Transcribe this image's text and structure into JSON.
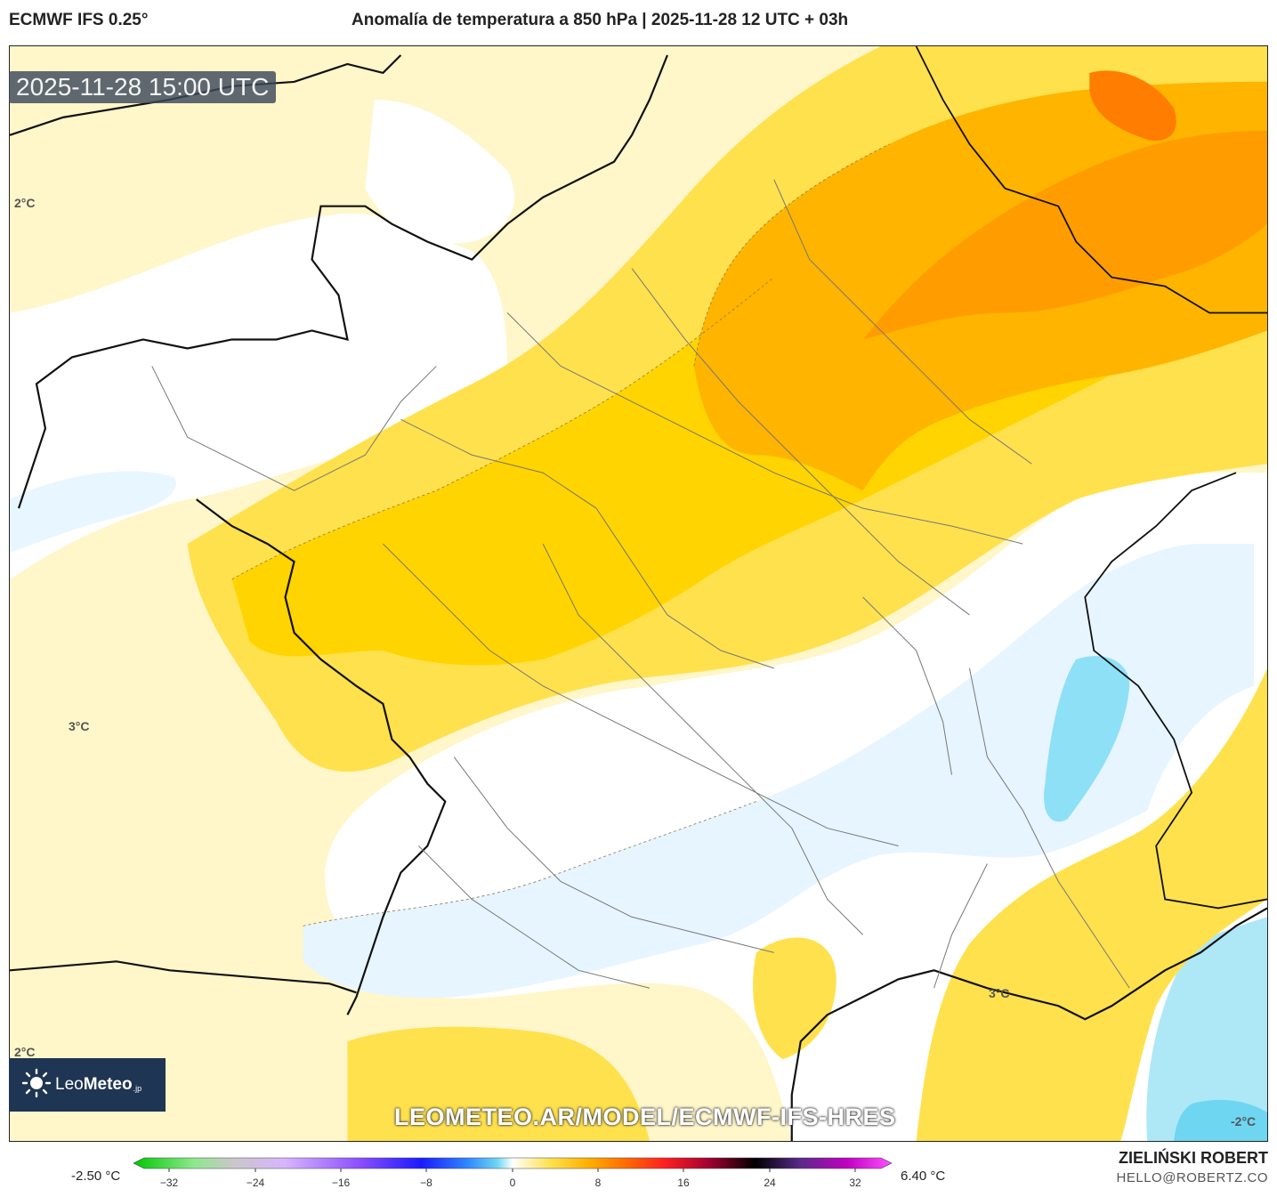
{
  "header": {
    "model": "ECMWF IFS 0.25°",
    "title": "Anomalía de temperatura a 850 hPa | 2025-11-28 12 UTC + 03h"
  },
  "map": {
    "timestamp": "2025-11-28 15:00 UTC",
    "watermark": "LEOMETEO.AR/MODEL/ECMWF-IFS-HRES",
    "contour_labels": [
      "2°C",
      "3°C",
      "2°C",
      "3°C",
      "-2°C"
    ],
    "palette": {
      "pale_yellow": "#fff3b8",
      "yellow": "#ffe14d",
      "gold": "#ffd200",
      "orange": "#ffb000",
      "dark_orange": "#ff9500",
      "red_orange": "#ff7a00",
      "pale_blue": "#e4f4ff",
      "cyan": "#8ee0f6"
    }
  },
  "logo": {
    "brand_light": "Leo",
    "brand_bold": "Meteo",
    "tld": ".jp",
    "icon": "sun-icon"
  },
  "legend": {
    "min_label": "-2.50 °C",
    "max_label": "6.40 °C",
    "ticks": [
      "−32",
      "−24",
      "−16",
      "−8",
      "0",
      "8",
      "16",
      "24",
      "32"
    ]
  },
  "footer": {
    "author": "ZIELIŃSKI ROBERT",
    "email": "HELLO@ROBERTZ.CO"
  }
}
